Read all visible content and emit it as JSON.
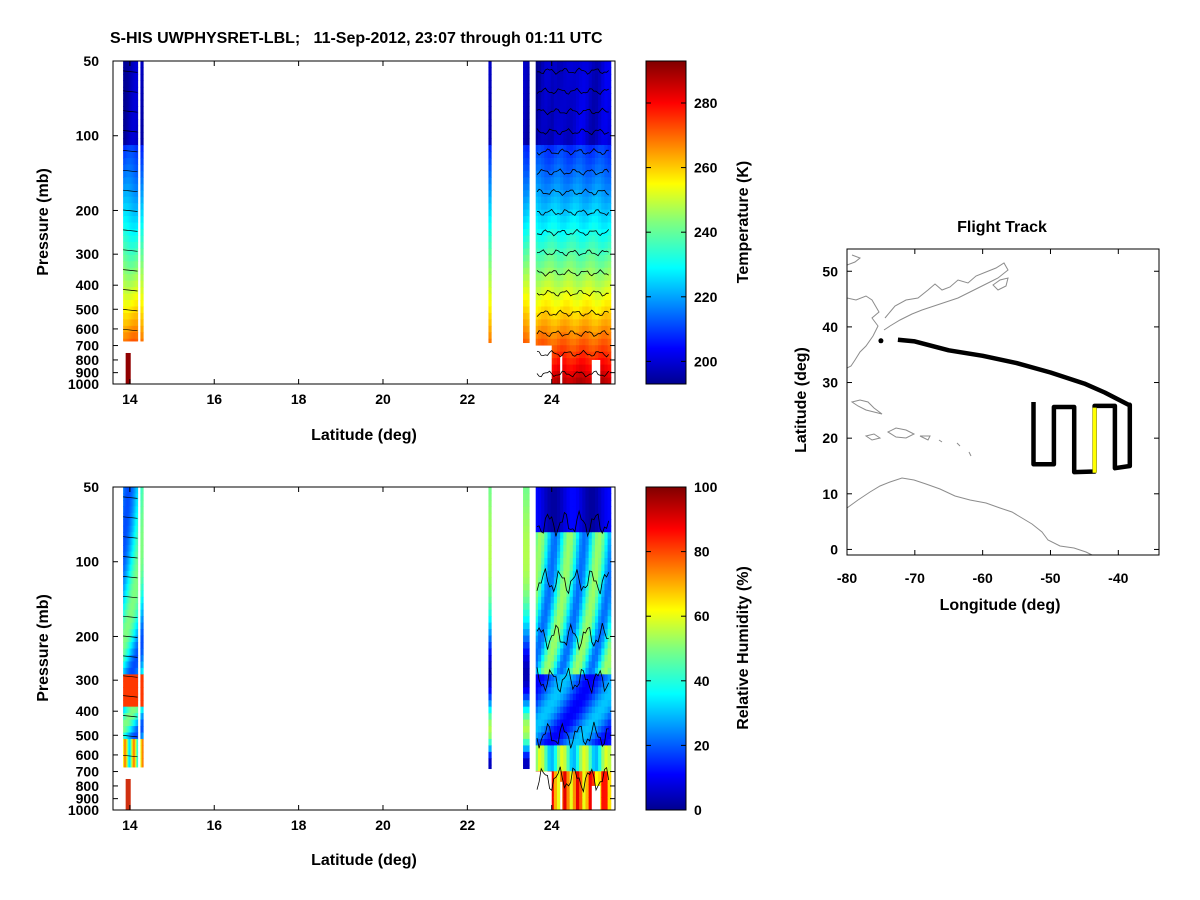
{
  "figure_title": "S-HIS UWPHYSRET-LBL;   11-Sep-2012, 23:07 through 01:11 UTC",
  "chart_data": [
    {
      "id": "temperature",
      "type": "heatmap",
      "variable": "Temperature",
      "xlabel": "Latitude (deg)",
      "ylabel": "Pressure (mb)",
      "xlim": [
        13.6,
        25.5
      ],
      "ylim": [
        50,
        1000
      ],
      "yscale": "log",
      "xticks": [
        14,
        16,
        18,
        20,
        22,
        24
      ],
      "yticks": [
        50,
        100,
        200,
        300,
        400,
        500,
        600,
        700,
        800,
        900,
        1000
      ],
      "colorbar": {
        "label": "Temperature (K)",
        "range": [
          193,
          293
        ],
        "ticks": [
          200,
          220,
          240,
          260,
          280
        ]
      },
      "profiles": [
        {
          "lat_start": 13.82,
          "lat_end": 14.2,
          "bottom_mb": 670,
          "extra": "near-surface red patch",
          "patch_lat": [
            13.9,
            14.02
          ],
          "patch_mb": [
            750,
            1000
          ]
        },
        {
          "lat_start": 14.25,
          "lat_end": 14.3,
          "bottom_mb": 670
        },
        {
          "lat_start": 22.5,
          "lat_end": 22.56,
          "bottom_mb": 680
        },
        {
          "lat_start": 23.3,
          "lat_end": 23.45,
          "bottom_mb": 680
        },
        {
          "lat_start": 23.58,
          "lat_end": 25.4,
          "bottom_mb": 1000
        }
      ]
    },
    {
      "id": "humidity",
      "type": "heatmap",
      "variable": "Relative Humidity",
      "xlabel": "Latitude (deg)",
      "ylabel": "Pressure (mb)",
      "xlim": [
        13.6,
        25.5
      ],
      "ylim": [
        50,
        1000
      ],
      "yscale": "log",
      "xticks": [
        14,
        16,
        18,
        20,
        22,
        24
      ],
      "yticks": [
        50,
        100,
        200,
        300,
        400,
        500,
        600,
        700,
        800,
        900,
        1000
      ],
      "colorbar": {
        "label": "Relative Humidity (%)",
        "range": [
          0,
          100
        ],
        "ticks": [
          0,
          20,
          40,
          60,
          80,
          100
        ]
      }
    },
    {
      "id": "flight-track",
      "type": "line",
      "title": "Flight Track",
      "xlabel": "Longitude (deg)",
      "ylabel": "Latitude (deg)",
      "xlim": [
        -80,
        -34
      ],
      "ylim": [
        -1,
        54
      ],
      "xticks": [
        -80,
        -70,
        -60,
        -50,
        -40
      ],
      "yticks": [
        0,
        10,
        20,
        30,
        40,
        50
      ],
      "series": [
        {
          "name": "track",
          "color": "#000000",
          "points": [
            [
              -72.5,
              37.7
            ],
            [
              -70,
              37.4
            ],
            [
              -65,
              35.8
            ],
            [
              -60,
              34.8
            ],
            [
              -55,
              33.5
            ],
            [
              -50,
              31.8
            ],
            [
              -45,
              29.8
            ],
            [
              -42,
              28.2
            ],
            [
              -38.5,
              26
            ],
            [
              -38.3,
              26
            ],
            [
              -38.3,
              15
            ],
            [
              -40.5,
              14.6
            ],
            [
              -40.5,
              25.8
            ],
            [
              -43.5,
              25.8
            ],
            [
              -43.5,
              14
            ],
            [
              -46.5,
              13.9
            ],
            [
              -46.5,
              25.6
            ],
            [
              -49.5,
              25.6
            ],
            [
              -49.5,
              15.3
            ],
            [
              -52.5,
              15.3
            ],
            [
              -52.5,
              26.5
            ]
          ]
        },
        {
          "name": "isolated point",
          "color": "#000000",
          "points": [
            [
              -75,
              37.5
            ]
          ]
        },
        {
          "name": "current segment",
          "color": "#ffff00",
          "points": [
            [
              -43.5,
              25.5
            ],
            [
              -43.5,
              13.8
            ]
          ]
        }
      ]
    }
  ],
  "colors": {
    "jet_low": "#00008f",
    "jet_high": "#800000",
    "axes": "#000000",
    "coast": "#8c8c8c"
  }
}
